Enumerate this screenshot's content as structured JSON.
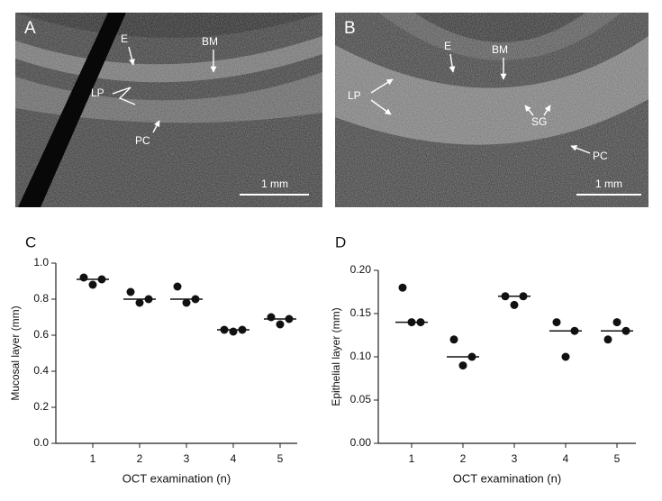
{
  "panels": [
    {
      "letter": "A",
      "labels": [
        "E",
        "BM",
        "LP",
        "PC"
      ],
      "scale_bar": "1 mm"
    },
    {
      "letter": "B",
      "labels": [
        "E",
        "BM",
        "LP",
        "SG",
        "PC"
      ],
      "scale_bar": "1 mm"
    }
  ],
  "chart_data": [
    {
      "type": "strip",
      "panel_label": "C",
      "y_label": "Mucosal layer (mm)",
      "x_label": "OCT examination (n)",
      "categories": [
        "1",
        "2",
        "3",
        "4",
        "5"
      ],
      "points": [
        [
          0.92,
          0.88,
          0.91
        ],
        [
          0.84,
          0.78,
          0.8
        ],
        [
          0.87,
          0.78,
          0.8
        ],
        [
          0.63,
          0.62,
          0.63
        ],
        [
          0.7,
          0.66,
          0.69
        ]
      ],
      "medians": [
        0.91,
        0.8,
        0.8,
        0.63,
        0.69
      ],
      "color": "#111111",
      "ylim": [
        0,
        1
      ],
      "yticks": [
        {
          "value": 0,
          "label": "0.0"
        },
        0.2,
        0.4,
        0.6,
        0.8,
        {
          "value": 1,
          "label": "1.0"
        }
      ]
    },
    {
      "type": "strip",
      "panel_label": "D",
      "y_label": "Epithelial layer (mm)",
      "x_label": "OCT examination (n)",
      "categories": [
        "1",
        "2",
        "3",
        "4",
        "5"
      ],
      "points": [
        [
          0.18,
          0.14,
          0.14
        ],
        [
          0.12,
          0.09,
          0.1
        ],
        [
          0.17,
          0.16,
          0.17
        ],
        [
          0.14,
          0.1,
          0.13
        ],
        [
          0.12,
          0.14,
          0.13
        ]
      ],
      "medians": [
        0.14,
        0.1,
        0.17,
        0.13,
        0.13
      ],
      "color": "#111111",
      "ylim": [
        0,
        0.2
      ],
      "yticks": [
        {
          "value": 0,
          "label": "0.00"
        },
        {
          "value": 0.05,
          "label": "0.05"
        },
        {
          "value": 0.1,
          "label": "0.10"
        },
        {
          "value": 0.15,
          "label": "0.15"
        },
        {
          "value": 0.2,
          "label": "0.20"
        }
      ]
    }
  ]
}
